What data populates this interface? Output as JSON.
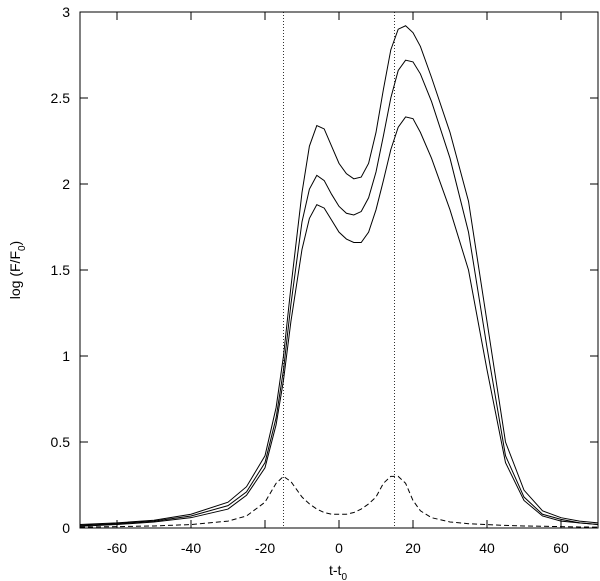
{
  "chart_data": {
    "type": "line",
    "x_label_parts": [
      "t-t",
      "0"
    ],
    "y_label_parts": [
      "log (F/F",
      "0",
      ")"
    ],
    "x": [
      -70,
      -60,
      -50,
      -40,
      -30,
      -25,
      -20,
      -17,
      -15,
      -13,
      -10,
      -8,
      -6,
      -4,
      -2,
      0,
      2,
      4,
      6,
      8,
      10,
      12,
      14,
      16,
      18,
      20,
      22,
      25,
      30,
      35,
      40,
      45,
      50,
      55,
      60,
      65,
      70
    ],
    "series": [
      {
        "color": "#000000",
        "dash": "solid",
        "values": [
          0.02,
          0.03,
          0.045,
          0.08,
          0.15,
          0.24,
          0.42,
          0.7,
          1.0,
          1.4,
          1.95,
          2.22,
          2.34,
          2.32,
          2.22,
          2.12,
          2.06,
          2.03,
          2.04,
          2.12,
          2.3,
          2.55,
          2.78,
          2.9,
          2.92,
          2.88,
          2.8,
          2.62,
          2.3,
          1.9,
          1.2,
          0.5,
          0.22,
          0.1,
          0.06,
          0.04,
          0.03
        ]
      },
      {
        "color": "#000000",
        "dash": "solid",
        "values": [
          0.015,
          0.025,
          0.04,
          0.07,
          0.13,
          0.21,
          0.38,
          0.64,
          0.92,
          1.3,
          1.78,
          1.97,
          2.05,
          2.02,
          1.94,
          1.87,
          1.83,
          1.82,
          1.84,
          1.92,
          2.07,
          2.28,
          2.5,
          2.66,
          2.72,
          2.71,
          2.64,
          2.48,
          2.15,
          1.72,
          1.05,
          0.42,
          0.18,
          0.08,
          0.05,
          0.03,
          0.02
        ]
      },
      {
        "color": "#000000",
        "dash": "solid",
        "values": [
          0.01,
          0.02,
          0.035,
          0.06,
          0.11,
          0.19,
          0.35,
          0.6,
          0.86,
          1.2,
          1.62,
          1.8,
          1.88,
          1.86,
          1.79,
          1.72,
          1.68,
          1.66,
          1.66,
          1.72,
          1.85,
          2.02,
          2.2,
          2.33,
          2.39,
          2.38,
          2.3,
          2.15,
          1.85,
          1.5,
          0.92,
          0.38,
          0.16,
          0.07,
          0.04,
          0.03,
          0.02
        ]
      },
      {
        "color": "#000000",
        "dash": "dashed",
        "values": [
          0.005,
          0.008,
          0.012,
          0.02,
          0.04,
          0.07,
          0.15,
          0.26,
          0.3,
          0.27,
          0.18,
          0.14,
          0.11,
          0.09,
          0.08,
          0.08,
          0.08,
          0.09,
          0.11,
          0.14,
          0.18,
          0.26,
          0.3,
          0.3,
          0.26,
          0.16,
          0.1,
          0.06,
          0.035,
          0.025,
          0.02,
          0.015,
          0.012,
          0.01,
          0.008,
          0.006,
          0.005
        ]
      }
    ],
    "vlines": [
      -15,
      15
    ],
    "xlim": [
      -70,
      70
    ],
    "ylim": [
      0,
      3
    ],
    "xticks": [
      -60,
      -40,
      -20,
      0,
      20,
      40,
      60
    ],
    "yticks": [
      0,
      0.5,
      1,
      1.5,
      2,
      2.5,
      3
    ],
    "grid": false
  }
}
